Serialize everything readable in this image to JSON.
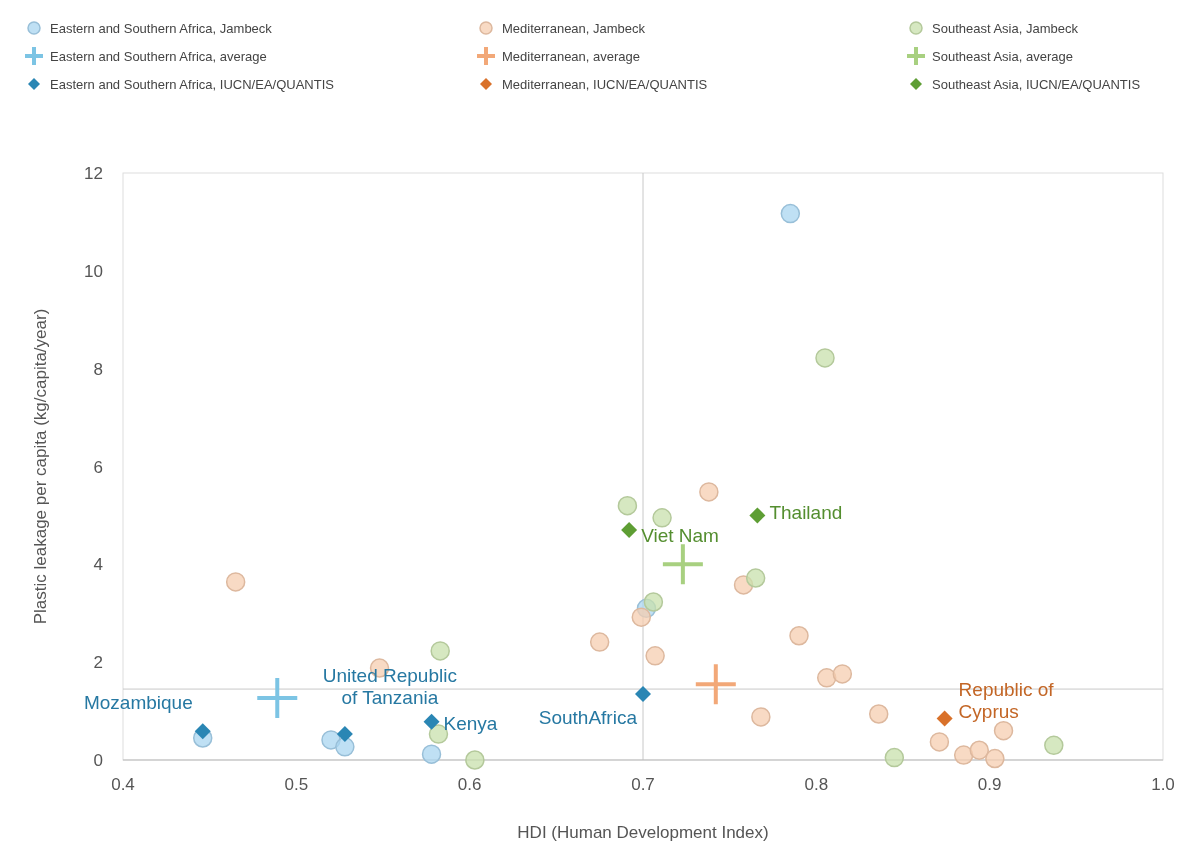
{
  "chart_data": {
    "type": "scatter",
    "xlabel": "HDI (Human Development Index)",
    "ylabel": "Plastic leakage per capita (kg/capita/year)",
    "xlim": [
      0.4,
      1.0
    ],
    "xticks": [
      0.4,
      0.5,
      0.6,
      0.7,
      0.8,
      0.9,
      {
        "value": 1.0,
        "label": "1.0"
      }
    ],
    "ylim": [
      0,
      12
    ],
    "yticks": [
      0,
      2,
      4,
      6,
      8,
      10,
      12
    ],
    "grid": false,
    "legend": "top",
    "ref_lines": [
      {
        "axis": "x",
        "value": 0.7,
        "color": "#c8c8c8"
      },
      {
        "axis": "y",
        "value": 1.45,
        "color": "#c8c8c8"
      }
    ],
    "series": [
      {
        "name": "Eastern and Southern Africa, Jambeck",
        "color": "#a9d5f0",
        "marker": "circle",
        "x": [
          0.446,
          0.52,
          0.528,
          0.578,
          0.702,
          0.785
        ],
        "values": [
          0.45,
          0.41,
          0.27,
          0.12,
          3.1,
          11.17
        ]
      },
      {
        "name": "Mediterranean, Jambeck",
        "color": "#f6cdb0",
        "marker": "circle",
        "x": [
          0.465,
          0.548,
          0.675,
          0.699,
          0.707,
          0.738,
          0.758,
          0.768,
          0.79,
          0.806,
          0.815,
          0.836,
          0.871,
          0.885,
          0.894,
          0.903,
          0.908
        ],
        "values": [
          3.64,
          1.88,
          2.41,
          2.92,
          2.13,
          5.48,
          3.58,
          0.88,
          2.54,
          1.68,
          1.76,
          0.94,
          0.37,
          0.1,
          0.2,
          0.03,
          0.6
        ]
      },
      {
        "name": "Southeast Asia, Jambeck",
        "color": "#c8e0ac",
        "marker": "circle",
        "x": [
          0.582,
          0.583,
          0.603,
          0.691,
          0.711,
          0.706,
          0.765,
          0.805,
          0.845,
          0.937
        ],
        "values": [
          0.53,
          2.23,
          0.0,
          5.2,
          4.95,
          3.23,
          3.72,
          8.22,
          0.05,
          0.3
        ]
      },
      {
        "name": "Eastern and Southern Africa, average",
        "color": "#7cc4e4",
        "marker": "cross",
        "x": [
          0.489
        ],
        "values": [
          1.27
        ]
      },
      {
        "name": "Mediterranean, average",
        "color": "#f2a878",
        "marker": "cross",
        "x": [
          0.742
        ],
        "values": [
          1.55
        ]
      },
      {
        "name": "Southeast Asia, average",
        "color": "#a8d080",
        "marker": "cross",
        "x": [
          0.723
        ],
        "values": [
          4.0
        ]
      },
      {
        "name": "Eastern and Southern Africa, IUCN/EA/QUANTIS",
        "color": "#2a86b4",
        "marker": "diamond",
        "x": [
          0.446,
          0.528,
          0.578,
          0.7
        ],
        "values": [
          0.59,
          0.53,
          0.78,
          1.35
        ]
      },
      {
        "name": "Mediterranean, IUCN/EA/QUANTIS",
        "color": "#d9712a",
        "marker": "diamond",
        "x": [
          0.874
        ],
        "values": [
          0.85
        ]
      },
      {
        "name": "Southeast Asia, IUCN/EA/QUANTIS",
        "color": "#5e9e34",
        "marker": "diamond",
        "x": [
          0.692,
          0.766
        ],
        "values": [
          4.7,
          5.0
        ]
      }
    ],
    "annotations": [
      {
        "text": "Mozambique",
        "x": 0.446,
        "y": 0.59
      },
      {
        "text": "United Republic\nof Tanzania",
        "x": 0.528,
        "y": 0.53
      },
      {
        "text": "Kenya",
        "x": 0.578,
        "y": 0.78
      },
      {
        "text": "SouthAfrica",
        "x": 0.7,
        "y": 1.35
      },
      {
        "text": "Viet Nam",
        "x": 0.692,
        "y": 4.7
      },
      {
        "text": "Thailand",
        "x": 0.766,
        "y": 5.0
      },
      {
        "text": "Republic of\nCyprus",
        "x": 0.874,
        "y": 0.85
      }
    ]
  }
}
